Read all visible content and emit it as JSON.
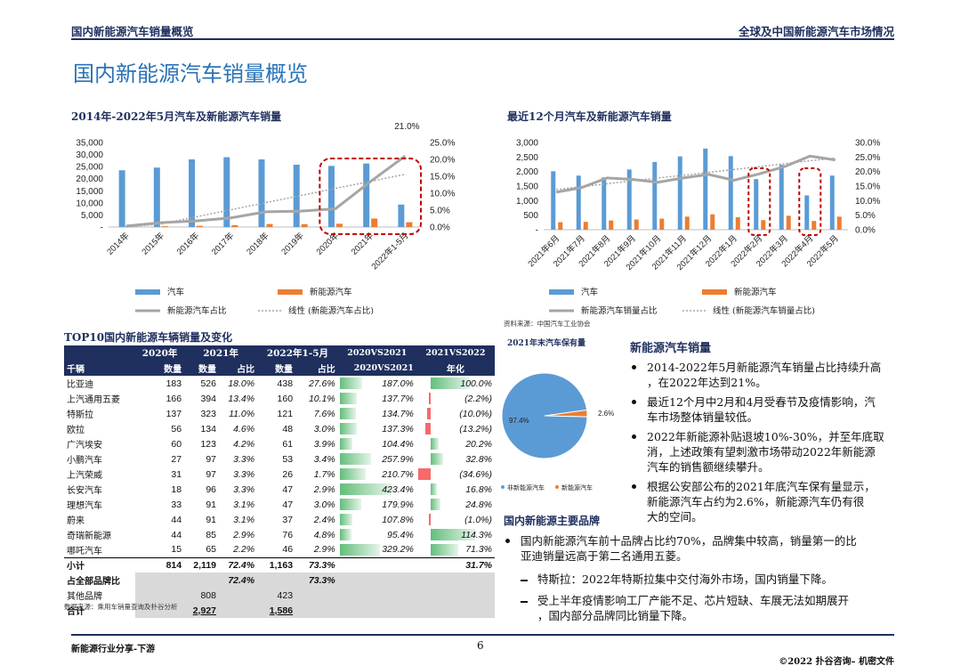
{
  "header": {
    "left": "国内新能源汽车销量概览",
    "right": "全球及中国新能源汽车市场情况"
  },
  "page_title": "国内新能源汽车销量概览",
  "footer": {
    "left": "新能源行业分享-下游",
    "page": "6",
    "right": "©2022 扑谷咨询– 机密文件"
  },
  "chart_data": [
    {
      "type": "bar",
      "title": "2014年-2022年5月汽车及新能源汽车销量",
      "categories": [
        "2014年",
        "2015年",
        "2016年",
        "2017年",
        "2018年",
        "2019年",
        "2020年",
        "2021年",
        "2022年1-5月"
      ],
      "series": [
        {
          "name": "汽车",
          "type": "bar",
          "axis": "left",
          "values": [
            23500,
            24600,
            28000,
            28900,
            28000,
            25800,
            25300,
            26300,
            9300
          ]
        },
        {
          "name": "新能源汽车",
          "type": "bar",
          "axis": "left",
          "values": [
            75,
            330,
            510,
            780,
            1250,
            1200,
            1370,
            3520,
            2000
          ]
        },
        {
          "name": "新能源汽车占比",
          "type": "line",
          "axis": "right",
          "values": [
            0.3,
            1.3,
            1.8,
            2.7,
            4.5,
            4.7,
            5.4,
            13.4,
            21.0
          ]
        },
        {
          "name": "线性 (新能源汽车占比)",
          "type": "trendline",
          "axis": "right",
          "values": [
            -1.2,
            0.9,
            3.0,
            5.1,
            7.2,
            9.3,
            11.4,
            13.5,
            15.6
          ]
        }
      ],
      "y_left_ticks": [
        "35,000",
        "30,000",
        "25,000",
        "20,000",
        "15,000",
        "10,000",
        "5,000",
        "-"
      ],
      "ylim_left": [
        0,
        35000
      ],
      "y_right_ticks": [
        "25.0%",
        "20.0%",
        "15.0%",
        "10.0%",
        "5.0%",
        "0.0%"
      ],
      "ylim_right": [
        0,
        25
      ],
      "annotation": "21.0%",
      "highlight_categories": [
        "2020年",
        "2022年1-5月"
      ],
      "legend": {
        "placement": "bottom",
        "items": [
          "汽车",
          "新能源汽车",
          "新能源汽车占比",
          "线性 (新能源汽车占比)"
        ]
      }
    },
    {
      "type": "bar",
      "title": "最近12个月汽车及新能源汽车销量",
      "categories": [
        "2021年6月",
        "2021年7月",
        "2021年8月",
        "2021年9月",
        "2021年10月",
        "2021年11月",
        "2021年12月",
        "2022年1月",
        "2022年2月",
        "2022年3月",
        "2022年4月",
        "2022年5月"
      ],
      "series": [
        {
          "name": "汽车",
          "type": "bar",
          "axis": "left",
          "values": [
            2010,
            1860,
            1800,
            2070,
            2330,
            2520,
            2790,
            2530,
            1740,
            2230,
            1180,
            1860
          ]
        },
        {
          "name": "新能源汽车",
          "type": "bar",
          "axis": "left",
          "values": [
            260,
            270,
            320,
            350,
            380,
            450,
            530,
            430,
            330,
            480,
            300,
            450
          ]
        },
        {
          "name": "新能源汽车销量占比",
          "type": "line",
          "axis": "right",
          "values": [
            12.9,
            14.5,
            17.8,
            17.3,
            16.3,
            17.8,
            19.0,
            17.0,
            19.2,
            21.7,
            25.3,
            24.0
          ]
        },
        {
          "name": "线性 (新能源汽车销量占比)",
          "type": "trendline",
          "axis": "right",
          "values": [
            13.8,
            14.8,
            15.8,
            16.8,
            17.8,
            18.7,
            19.7,
            20.7,
            21.7,
            22.7,
            23.7,
            24.6
          ]
        }
      ],
      "y_left_ticks": [
        "3,000",
        "2,500",
        "2,000",
        "1,500",
        "1,000",
        "500",
        "-"
      ],
      "ylim_left": [
        0,
        3000
      ],
      "y_right_ticks": [
        "30.0%",
        "25.0%",
        "20.0%",
        "15.0%",
        "10.0%",
        "5.0%",
        "0.0%"
      ],
      "ylim_right": [
        0,
        30
      ],
      "highlight_categories": [
        "2022年2月",
        "2022年4月"
      ],
      "legend": {
        "placement": "bottom",
        "items": [
          "汽车",
          "新能源汽车",
          "新能源汽车销量占比",
          "线性 (新能源汽车销量占比)"
        ]
      }
    },
    {
      "type": "pie",
      "title": "2021年末汽车保有量",
      "slices": [
        {
          "name": "非新能源汽车",
          "value": 97.4,
          "label": "97.4%",
          "color": "#5b9bd5"
        },
        {
          "name": "新能源汽车",
          "value": 2.6,
          "label": "2.6%",
          "color": "#ed7d31"
        }
      ],
      "legend": {
        "placement": "bottom"
      }
    },
    {
      "type": "table",
      "title": "TOP10国内新能源车辆销量及变化",
      "header_groups": [
        "2020年",
        "2021年",
        "2022年1-5月",
        "2020VS2021",
        "2021VS2022"
      ],
      "columns": [
        "千辆",
        "数量",
        "数量",
        "占比",
        "数量",
        "占比",
        "2020VS2021",
        "年化"
      ],
      "rows": [
        {
          "name": "比亚迪",
          "v2020": "183",
          "v2021": "526",
          "s2021": "18.0%",
          "v2022": "438",
          "s2022": "27.6%",
          "g1": "187.0%",
          "g1v": 187.0,
          "g2": "100.0%",
          "g2v": 100.0
        },
        {
          "name": "上汽通用五菱",
          "v2020": "166",
          "v2021": "394",
          "s2021": "13.4%",
          "v2022": "160",
          "s2022": "10.1%",
          "g1": "137.7%",
          "g1v": 137.7,
          "g2": "(2.2%)",
          "g2v": -2.2
        },
        {
          "name": "特斯拉",
          "v2020": "137",
          "v2021": "323",
          "s2021": "11.0%",
          "v2022": "121",
          "s2022": "7.6%",
          "g1": "134.7%",
          "g1v": 134.7,
          "g2": "(10.0%)",
          "g2v": -10.0
        },
        {
          "name": "欧拉",
          "v2020": "56",
          "v2021": "134",
          "s2021": "4.6%",
          "v2022": "48",
          "s2022": "3.0%",
          "g1": "137.3%",
          "g1v": 137.3,
          "g2": "(13.2%)",
          "g2v": -13.2
        },
        {
          "name": "广汽埃安",
          "v2020": "60",
          "v2021": "123",
          "s2021": "4.2%",
          "v2022": "61",
          "s2022": "3.9%",
          "g1": "104.4%",
          "g1v": 104.4,
          "g2": "20.2%",
          "g2v": 20.2
        },
        {
          "name": "小鹏汽车",
          "v2020": "27",
          "v2021": "97",
          "s2021": "3.3%",
          "v2022": "53",
          "s2022": "3.4%",
          "g1": "257.9%",
          "g1v": 257.9,
          "g2": "32.8%",
          "g2v": 32.8
        },
        {
          "name": "上汽荣威",
          "v2020": "31",
          "v2021": "97",
          "s2021": "3.3%",
          "v2022": "26",
          "s2022": "1.7%",
          "g1": "210.7%",
          "g1v": 210.7,
          "g2": "(34.6%)",
          "g2v": -34.6
        },
        {
          "name": "长安汽车",
          "v2020": "18",
          "v2021": "96",
          "s2021": "3.3%",
          "v2022": "47",
          "s2022": "2.9%",
          "g1": "423.4%",
          "g1v": 423.4,
          "g2": "16.8%",
          "g2v": 16.8
        },
        {
          "name": "理想汽车",
          "v2020": "33",
          "v2021": "91",
          "s2021": "3.1%",
          "v2022": "47",
          "s2022": "3.0%",
          "g1": "179.9%",
          "g1v": 179.9,
          "g2": "24.8%",
          "g2v": 24.8
        },
        {
          "name": "蔚来",
          "v2020": "44",
          "v2021": "91",
          "s2021": "3.1%",
          "v2022": "37",
          "s2022": "2.4%",
          "g1": "107.8%",
          "g1v": 107.8,
          "g2": "(1.0%)",
          "g2v": -1.0
        },
        {
          "name": "奇瑞新能源",
          "v2020": "44",
          "v2021": "85",
          "s2021": "2.9%",
          "v2022": "76",
          "s2022": "4.8%",
          "g1": "95.4%",
          "g1v": 95.4,
          "g2": "114.3%",
          "g2v": 114.3
        },
        {
          "name": "哪吒汽车",
          "v2020": "15",
          "v2021": "65",
          "s2021": "2.2%",
          "v2022": "46",
          "s2022": "2.9%",
          "g1": "329.2%",
          "g1v": 329.2,
          "g2": "71.3%",
          "g2v": 71.3
        }
      ],
      "subtotal": {
        "name": "小计",
        "v2020": "814",
        "v2021": "2,119",
        "s2021": "72.4%",
        "v2022": "1,163",
        "s2022": "73.3%",
        "g2": "31.7%"
      },
      "extra_rows": [
        {
          "name": "占全部品牌比",
          "v2021": "",
          "s2021": "72.4%",
          "v2022": "",
          "s2022": "73.3%"
        },
        {
          "name": "其他品牌",
          "v2021": "808",
          "s2021": "",
          "v2022": "423",
          "s2022": ""
        },
        {
          "name": "合计",
          "v2021": "2,927",
          "s2021": "",
          "v2022": "1,586",
          "s2022": ""
        }
      ]
    }
  ],
  "source1": "资料来源：中国汽车工业协会",
  "source2": "数据来源：乘用车销量查询及扑谷分析",
  "section1": {
    "title": "新能源汽车销量",
    "bullets": [
      [
        "2014-2022年5月新能源汽车销量占比持续升高",
        "，在2022年达到21%。"
      ],
      [
        "最近12个月中2月和4月受春节及疫情影响，汽",
        "车市场整体销量较低。"
      ],
      [
        "2022年新能源补贴退坡10%-30%，并至年底取",
        "消，上述政策有望刺激市场带动2022年新能源",
        "汽车的销售额继续攀升。"
      ],
      [
        "根据公安部公布的2021年底汽车保有量显示，",
        "新能源汽车占约为2.6%，新能源汽车仍有很",
        "大的空间。"
      ]
    ]
  },
  "section2": {
    "title": "国内新能源主要品牌",
    "bullet": [
      "国内新能源汽车前十品牌占比约70%，品牌集中较高，销量第一的比",
      "亚迪销量远高于第二名通用五菱。"
    ],
    "subs": [
      [
        "特斯拉：2022年特斯拉集中交付海外市场，国内销量下降。"
      ],
      [
        "受上半年疫情影响工厂产能不足、芯片短缺、车展无法如期展开",
        "，国内部分品牌同比销量下降。"
      ]
    ]
  },
  "colors": {
    "navy": "#1f2f5e",
    "blue": "#5b9bd5",
    "orange": "#ed7d31",
    "gray": "#a5a5a5",
    "green": "#63be7b",
    "red": "#f8696b",
    "highlight": "#c00000",
    "title": "#2a73b8"
  }
}
